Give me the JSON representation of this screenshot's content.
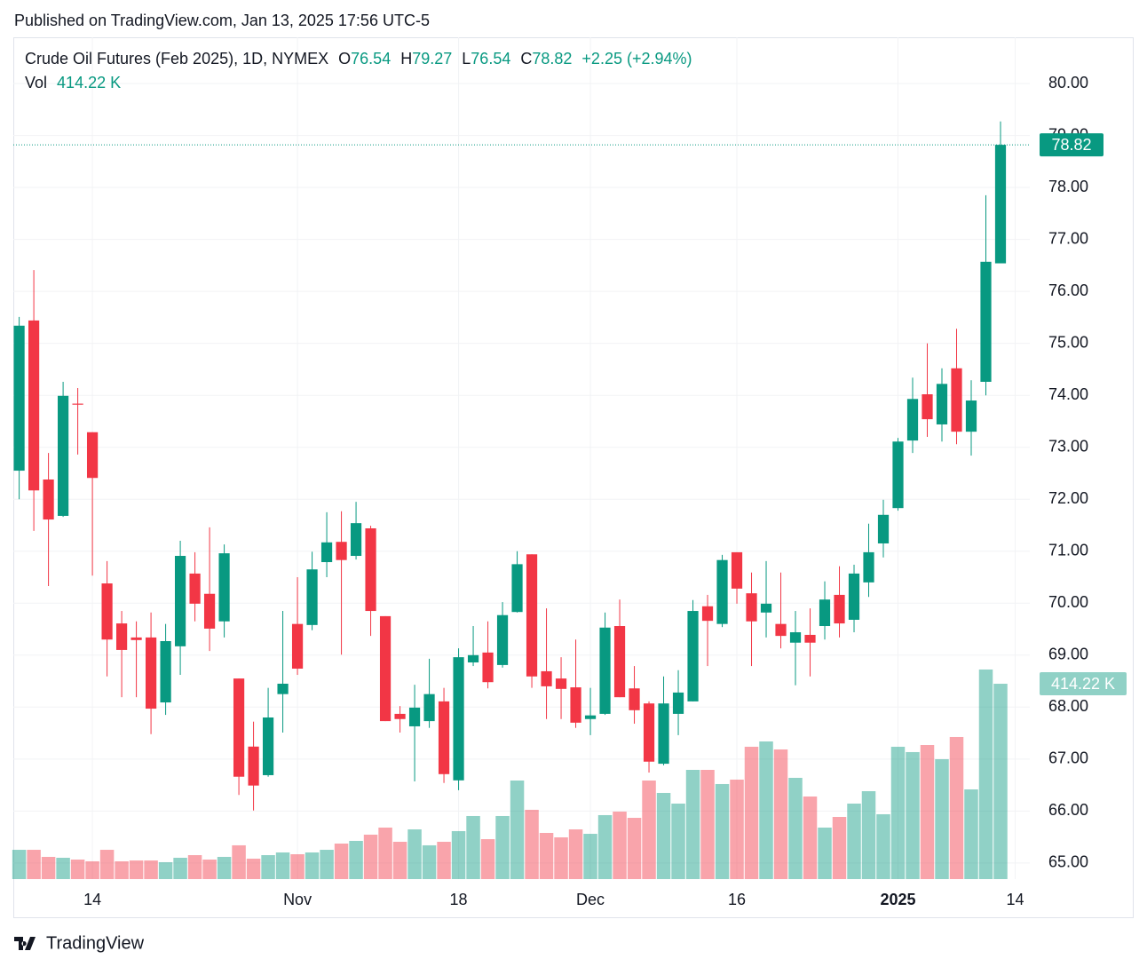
{
  "header": {
    "published": "Published on TradingView.com, Jan 13, 2025 17:56 UTC-5"
  },
  "chart_data": {
    "type": "candlestick",
    "title": "Crude Oil Futures (Feb 2025), 1D, NYMEX",
    "legend_labels": {
      "open": "O",
      "high": "H",
      "low": "L",
      "close": "C"
    },
    "change_label": "+2.25 (+2.94%)",
    "volume_name": "Vol",
    "volume_label": "414.22 K",
    "open": [
      72.55,
      75.44,
      72.38,
      71.68,
      73.84,
      73.29,
      70.38,
      69.61,
      69.34,
      69.34,
      68.09,
      69.17,
      70.57,
      70.18,
      69.65,
      68.55,
      67.24,
      66.69,
      68.25,
      69.6,
      69.58,
      70.79,
      71.18,
      70.91,
      71.44,
      69.75,
      67.87,
      67.63,
      67.73,
      68.11,
      66.59,
      68.86,
      69.05,
      68.81,
      69.83,
      70.94,
      68.69,
      68.55,
      68.38,
      67.77,
      67.87,
      69.56,
      68.36,
      68.07,
      66.91,
      67.87,
      68.11,
      69.94,
      69.6,
      70.98,
      70.19,
      69.82,
      69.6,
      69.24,
      69.39,
      69.56,
      70.16,
      69.68,
      70.4,
      71.15,
      71.83,
      73.13,
      74.02,
      73.44,
      74.52,
      73.3,
      74.26,
      76.54
    ],
    "high": [
      75.51,
      76.41,
      72.89,
      74.26,
      74.14,
      73.29,
      70.81,
      69.85,
      69.65,
      69.82,
      69.6,
      71.2,
      70.98,
      71.46,
      71.13,
      68.55,
      67.72,
      68.37,
      69.85,
      70.5,
      70.99,
      71.75,
      71.77,
      71.95,
      71.49,
      69.75,
      68.02,
      68.43,
      68.93,
      68.37,
      69.13,
      69.56,
      69.65,
      70.02,
      71.0,
      70.94,
      69.9,
      68.96,
      69.3,
      68.37,
      69.82,
      70.07,
      68.79,
      68.11,
      68.59,
      68.71,
      70.06,
      70.16,
      70.93,
      70.98,
      70.59,
      70.81,
      70.59,
      69.85,
      69.9,
      70.42,
      70.71,
      70.74,
      71.53,
      71.99,
      73.18,
      74.34,
      75.0,
      74.52,
      75.28,
      74.29,
      77.85,
      79.27
    ],
    "low": [
      72.0,
      71.39,
      70.33,
      71.66,
      72.86,
      70.53,
      68.59,
      68.19,
      68.19,
      67.48,
      67.85,
      68.62,
      69.65,
      69.08,
      69.34,
      66.31,
      66.01,
      66.66,
      67.51,
      68.62,
      69.48,
      70.5,
      69.01,
      70.84,
      69.37,
      67.73,
      67.51,
      66.57,
      67.6,
      66.54,
      66.4,
      68.79,
      68.36,
      68.76,
      69.82,
      68.37,
      67.77,
      67.77,
      67.6,
      67.46,
      67.85,
      68.19,
      67.68,
      66.74,
      66.88,
      67.46,
      68.11,
      68.79,
      69.54,
      69.99,
      68.79,
      69.34,
      69.13,
      68.42,
      68.59,
      69.3,
      69.34,
      69.44,
      70.12,
      70.88,
      71.78,
      72.89,
      73.2,
      73.11,
      73.06,
      72.84,
      74.0,
      76.54
    ],
    "close": [
      75.34,
      72.17,
      71.61,
      73.99,
      73.82,
      72.41,
      69.3,
      69.1,
      69.29,
      67.97,
      69.27,
      70.91,
      69.99,
      69.51,
      70.96,
      66.66,
      66.49,
      67.8,
      68.45,
      68.74,
      70.65,
      71.17,
      70.83,
      71.54,
      69.85,
      67.73,
      67.77,
      67.99,
      68.25,
      66.71,
      68.96,
      69.0,
      68.48,
      69.77,
      70.75,
      68.59,
      68.4,
      68.35,
      67.7,
      67.84,
      69.53,
      68.19,
      67.94,
      66.95,
      68.07,
      68.28,
      69.85,
      69.66,
      70.83,
      70.28,
      69.65,
      69.99,
      69.37,
      69.44,
      69.24,
      70.07,
      69.61,
      70.57,
      70.98,
      71.7,
      73.11,
      73.93,
      73.54,
      74.22,
      73.3,
      73.9,
      76.57,
      78.82
    ],
    "volume": [
      62.1,
      62.1,
      47.1,
      45.2,
      41.4,
      37.7,
      62.1,
      37.7,
      39.5,
      39.5,
      35.8,
      45.2,
      50.8,
      41.4,
      47.1,
      71.6,
      43.3,
      50.8,
      56.5,
      52.7,
      56.5,
      62.1,
      75.3,
      81.0,
      94.2,
      109.2,
      79.1,
      105.4,
      71.6,
      79.1,
      101.7,
      133.7,
      84.7,
      133.7,
      209.0,
      146.9,
      97.9,
      88.5,
      105.4,
      96.0,
      135.6,
      143.1,
      129.9,
      209.0,
      182.7,
      160.1,
      231.6,
      231.6,
      201.5,
      210.9,
      280.6,
      291.9,
      274.9,
      214.7,
      175.1,
      109.2,
      131.8,
      160.1,
      186.4,
      137.5,
      280.6,
      269.3,
      284.3,
      254.2,
      301.3,
      190.2,
      444.4,
      414.22
    ],
    "up_color": "#089981",
    "down_color": "#f23645",
    "xlim": [
      -0.4,
      69
    ],
    "xticks": [
      {
        "value": 5,
        "label": "14"
      },
      {
        "value": 19,
        "label": "Nov"
      },
      {
        "value": 30,
        "label": "18"
      },
      {
        "value": 39,
        "label": "Dec"
      },
      {
        "value": 49,
        "label": "16"
      },
      {
        "value": 60,
        "label": "2025"
      },
      {
        "value": 68,
        "label": "14"
      }
    ],
    "ylim": [
      64.69,
      80.89
    ],
    "yticks": [
      {
        "value": 65,
        "label": "65.00"
      },
      {
        "value": 66,
        "label": "66.00"
      },
      {
        "value": 67,
        "label": "67.00"
      },
      {
        "value": 68,
        "label": "68.00"
      },
      {
        "value": 69,
        "label": "69.00"
      },
      {
        "value": 70,
        "label": "70.00"
      },
      {
        "value": 71,
        "label": "71.00"
      },
      {
        "value": 72,
        "label": "72.00"
      },
      {
        "value": 73,
        "label": "73.00"
      },
      {
        "value": 74,
        "label": "74.00"
      },
      {
        "value": 75,
        "label": "75.00"
      },
      {
        "value": 76,
        "label": "76.00"
      },
      {
        "value": 77,
        "label": "77.00"
      },
      {
        "value": 78,
        "label": "78.00"
      },
      {
        "value": 79,
        "label": "79.00"
      },
      {
        "value": 80,
        "label": "80.00"
      }
    ],
    "volume_ylim": [
      0,
      1785
    ],
    "grid": true
  },
  "footer": {
    "brand": "TradingView"
  }
}
